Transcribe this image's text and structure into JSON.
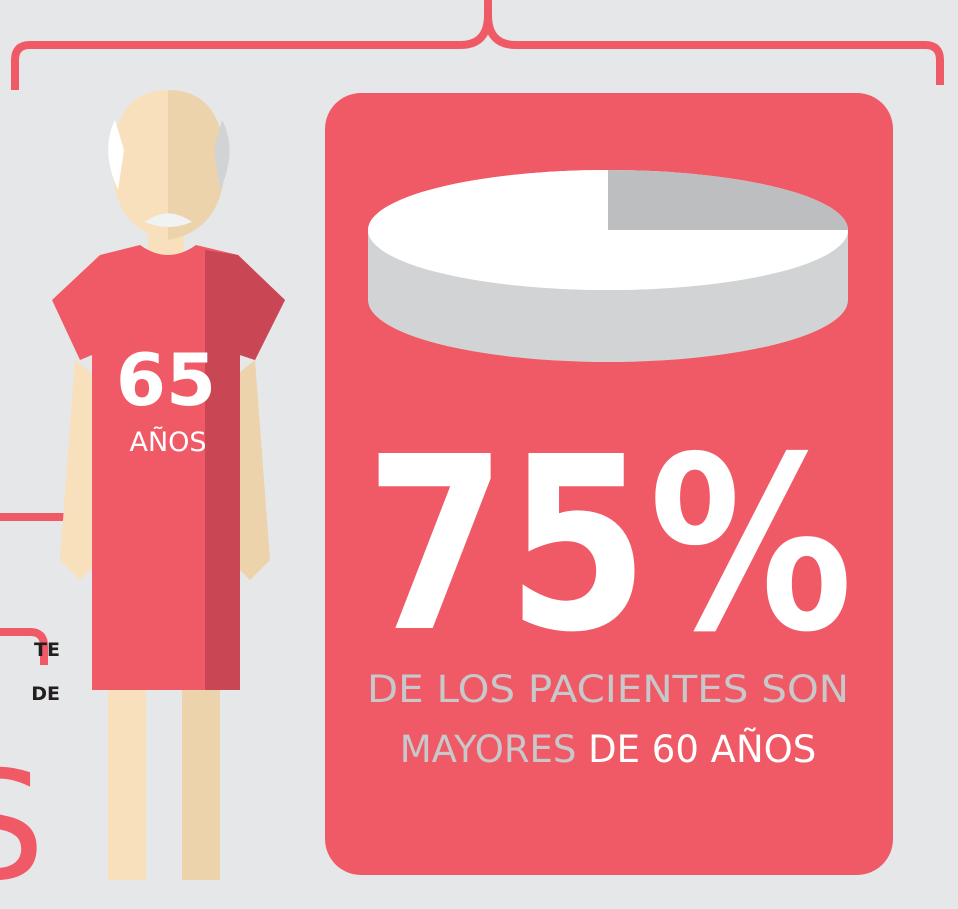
{
  "figure": {
    "age": "65",
    "unit": "AÑOS"
  },
  "stat": {
    "value": 75,
    "label": "75%"
  },
  "caption": {
    "line1": "DE LOS PACIENTES SON",
    "line2_gray": "MAYORES",
    "line2_white": "DE 60 AÑOS"
  },
  "side_text": {
    "line1": "TE",
    "line2": "DE",
    "big": "S"
  }
}
